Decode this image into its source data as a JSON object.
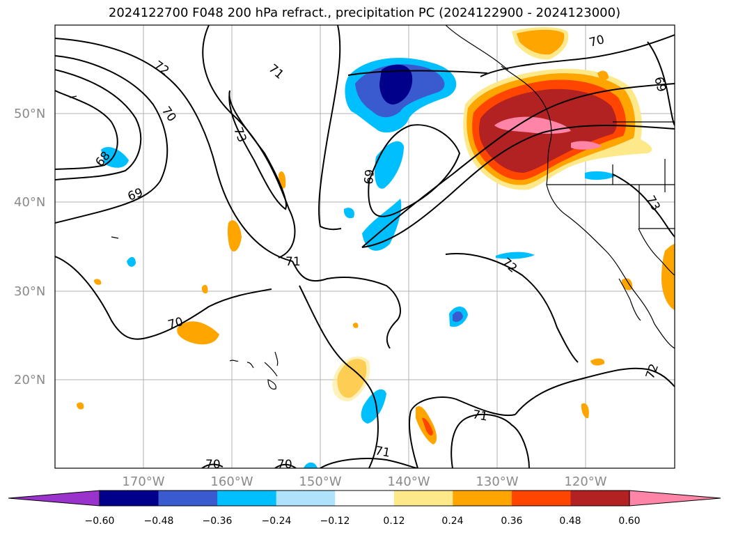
{
  "title": "2024122700 F048 200 hPa refract., precipitation PC (2024122900 - 2024123000)",
  "lat_labels": [
    "50°N",
    "40°N",
    "30°N",
    "20°N"
  ],
  "lon_labels": [
    "170°W",
    "160°W",
    "150°W",
    "140°W",
    "130°W",
    "120°W"
  ],
  "contour_labels": [
    "72",
    "71",
    "70",
    "73",
    "69",
    "68",
    "69",
    "71",
    "70",
    "72",
    "70",
    "71",
    "71",
    "70",
    "70",
    "69",
    "72",
    "73"
  ],
  "colorbar": {
    "ticks": [
      "−0.60",
      "−0.48",
      "−0.36",
      "−0.24",
      "−0.12",
      "0.12",
      "0.24",
      "0.36",
      "0.48",
      "0.60"
    ],
    "colors": [
      "#9933cc",
      "#00008b",
      "#3a5bcf",
      "#00bfff",
      "#aee3fb",
      "#ffffff",
      "#fde88a",
      "#ffa500",
      "#ff4500",
      "#b22222",
      "#ff85a8"
    ]
  }
}
